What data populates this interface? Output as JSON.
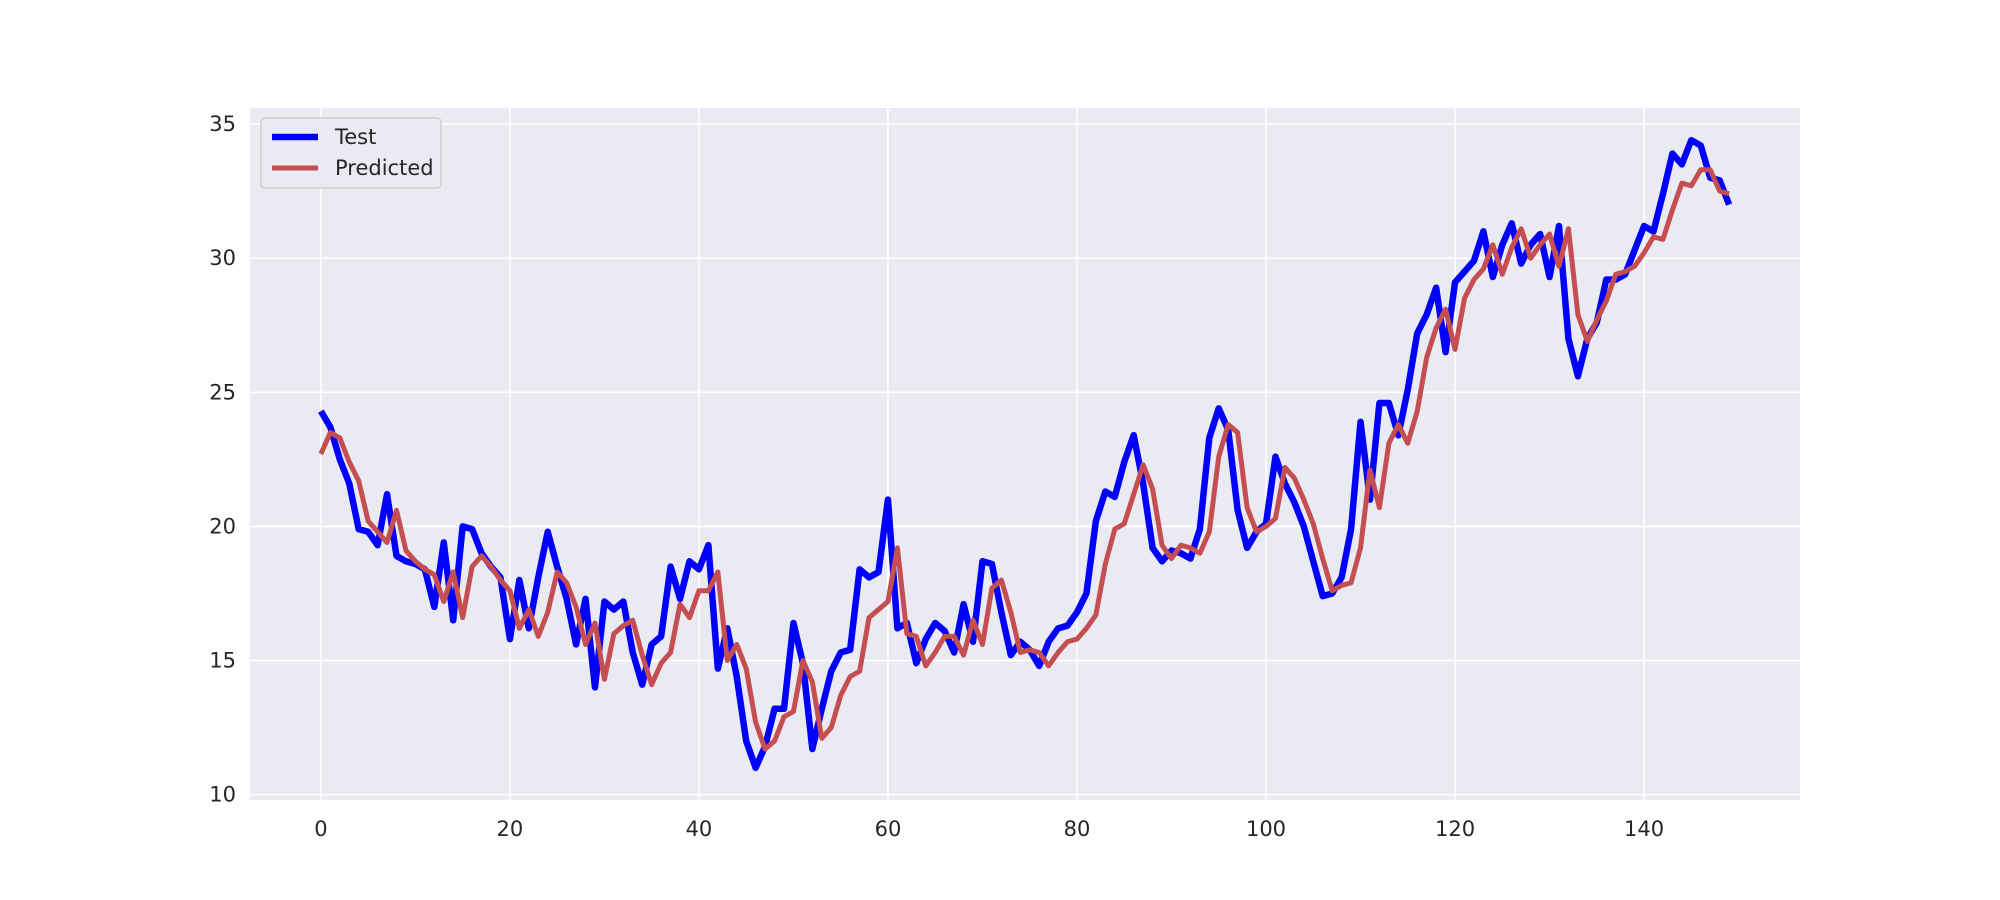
{
  "chart_data": {
    "type": "line",
    "title": "",
    "xlabel": "",
    "ylabel": "",
    "xlim": [
      -7.5,
      156.5
    ],
    "ylim": [
      9.8,
      35.6
    ],
    "xticks": [
      0,
      20,
      40,
      60,
      80,
      100,
      120,
      140
    ],
    "yticks": [
      10,
      15,
      20,
      25,
      30,
      35
    ],
    "grid": true,
    "legend_position": "top-left",
    "colors": {
      "plot_bg": "#eaeaf2",
      "grid": "#ffffff",
      "Test": "#0000ff",
      "Predicted": "#c44e52"
    },
    "series": [
      {
        "name": "Test",
        "values": [
          24.3,
          23.7,
          22.5,
          21.6,
          19.9,
          19.8,
          19.3,
          21.2,
          18.9,
          18.7,
          18.6,
          18.4,
          17.0,
          19.4,
          16.5,
          20.0,
          19.9,
          19.0,
          18.5,
          18.1,
          15.8,
          18.0,
          16.2,
          18.1,
          19.8,
          18.5,
          17.3,
          15.6,
          17.3,
          14.0,
          17.2,
          16.9,
          17.2,
          15.3,
          14.1,
          15.6,
          15.9,
          18.5,
          17.3,
          18.7,
          18.4,
          19.3,
          14.7,
          16.2,
          14.4,
          12.0,
          11.0,
          11.8,
          13.2,
          13.2,
          16.4,
          14.9,
          11.7,
          13.2,
          14.6,
          15.3,
          15.4,
          18.4,
          18.1,
          18.3,
          21.0,
          16.2,
          16.4,
          14.9,
          15.8,
          16.4,
          16.1,
          15.3,
          17.1,
          15.7,
          18.7,
          18.6,
          16.8,
          15.2,
          15.7,
          15.4,
          14.8,
          15.7,
          16.2,
          16.3,
          16.8,
          17.5,
          20.2,
          21.3,
          21.1,
          22.4,
          23.4,
          21.6,
          19.2,
          18.7,
          19.1,
          19.0,
          18.8,
          19.9,
          23.3,
          24.4,
          23.6,
          20.6,
          19.2,
          19.8,
          20.1,
          22.6,
          21.6,
          20.9,
          20.0,
          18.7,
          17.4,
          17.5,
          18.1,
          19.9,
          23.9,
          21.0,
          24.6,
          24.6,
          23.4,
          25.1,
          27.2,
          27.9,
          28.9,
          26.5,
          29.1,
          29.5,
          29.9,
          31.0,
          29.3,
          30.5,
          31.3,
          29.8,
          30.5,
          30.9,
          29.3,
          31.2,
          27.0,
          25.6,
          27.0,
          27.6,
          29.2,
          29.2,
          29.4,
          30.3,
          31.2,
          31.0,
          32.4,
          33.9,
          33.5,
          34.4,
          34.2,
          33.0,
          32.9,
          32.0
        ]
      },
      {
        "name": "Predicted",
        "values": [
          22.7,
          23.5,
          23.3,
          22.4,
          21.7,
          20.2,
          19.8,
          19.4,
          20.6,
          19.1,
          18.7,
          18.4,
          18.2,
          17.2,
          18.3,
          16.6,
          18.5,
          18.9,
          18.5,
          18.0,
          17.6,
          16.2,
          16.9,
          15.9,
          16.8,
          18.3,
          17.9,
          17.0,
          15.6,
          16.4,
          14.3,
          16.0,
          16.3,
          16.5,
          15.2,
          14.1,
          14.9,
          15.3,
          17.1,
          16.6,
          17.6,
          17.6,
          18.3,
          15.0,
          15.6,
          14.7,
          12.7,
          11.7,
          12.0,
          12.9,
          13.1,
          15.0,
          14.2,
          12.1,
          12.5,
          13.7,
          14.4,
          14.6,
          16.6,
          16.9,
          17.2,
          19.2,
          16.0,
          15.9,
          14.8,
          15.3,
          15.9,
          15.9,
          15.2,
          16.5,
          15.6,
          17.7,
          18.0,
          16.8,
          15.3,
          15.4,
          15.3,
          14.8,
          15.3,
          15.7,
          15.8,
          16.2,
          16.7,
          18.6,
          19.9,
          20.1,
          21.2,
          22.3,
          21.4,
          19.3,
          18.8,
          19.3,
          19.2,
          19.0,
          19.8,
          22.6,
          23.8,
          23.5,
          20.7,
          19.8,
          20.0,
          20.3,
          22.2,
          21.8,
          21.0,
          20.1,
          18.8,
          17.6,
          17.8,
          17.9,
          19.2,
          22.1,
          20.7,
          23.1,
          23.8,
          23.1,
          24.3,
          26.3,
          27.4,
          28.1,
          26.6,
          28.5,
          29.2,
          29.6,
          30.5,
          29.4,
          30.4,
          31.1,
          30.0,
          30.5,
          30.9,
          29.7,
          31.1,
          27.9,
          26.9,
          27.7,
          28.4,
          29.4,
          29.5,
          29.7,
          30.2,
          30.8,
          30.7,
          31.8,
          32.8,
          32.7,
          33.3,
          33.3,
          32.5,
          32.4
        ]
      }
    ]
  }
}
